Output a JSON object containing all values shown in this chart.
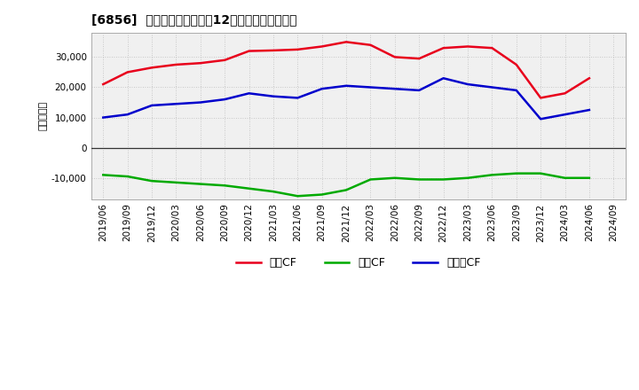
{
  "title": "[6856]  キャッシュフローの12か月移動合計の推移",
  "ylabel": "（百万円）",
  "xlabels": [
    "2019/06",
    "2019/09",
    "2019/12",
    "2020/03",
    "2020/06",
    "2020/09",
    "2020/12",
    "2021/03",
    "2021/06",
    "2021/09",
    "2021/12",
    "2022/03",
    "2022/06",
    "2022/09",
    "2022/12",
    "2023/03",
    "2023/06",
    "2023/09",
    "2023/12",
    "2024/03",
    "2024/06",
    "2024/09"
  ],
  "eigyo_cf": [
    21000,
    25000,
    26500,
    27500,
    28000,
    29000,
    32000,
    32200,
    32500,
    33500,
    35000,
    34000,
    30000,
    29500,
    33000,
    33500,
    33000,
    27500,
    16500,
    18000,
    23000,
    null
  ],
  "toshi_cf": [
    -9000,
    -9500,
    -11000,
    -11500,
    -12000,
    -12500,
    -13500,
    -14500,
    -16000,
    -15500,
    -14000,
    -10500,
    -10000,
    -10500,
    -10500,
    -10000,
    -9000,
    -8500,
    -8500,
    -10000,
    -10000,
    null
  ],
  "free_cf": [
    10000,
    11000,
    14000,
    14500,
    15000,
    16000,
    18000,
    17000,
    16500,
    19500,
    20500,
    20000,
    19500,
    19000,
    23000,
    21000,
    20000,
    19000,
    9500,
    11000,
    12500,
    null
  ],
  "eigyo_color": "#e8001c",
  "toshi_color": "#00aa00",
  "free_color": "#0000cc",
  "bg_color": "#ffffff",
  "plot_bg_color": "#f0f0f0",
  "grid_color": "#bbbbbb",
  "ylim": [
    -17000,
    38000
  ],
  "yticks": [
    -10000,
    0,
    10000,
    20000,
    30000
  ],
  "legend_labels": [
    "営業CF",
    "投資CF",
    "フリーCF"
  ]
}
